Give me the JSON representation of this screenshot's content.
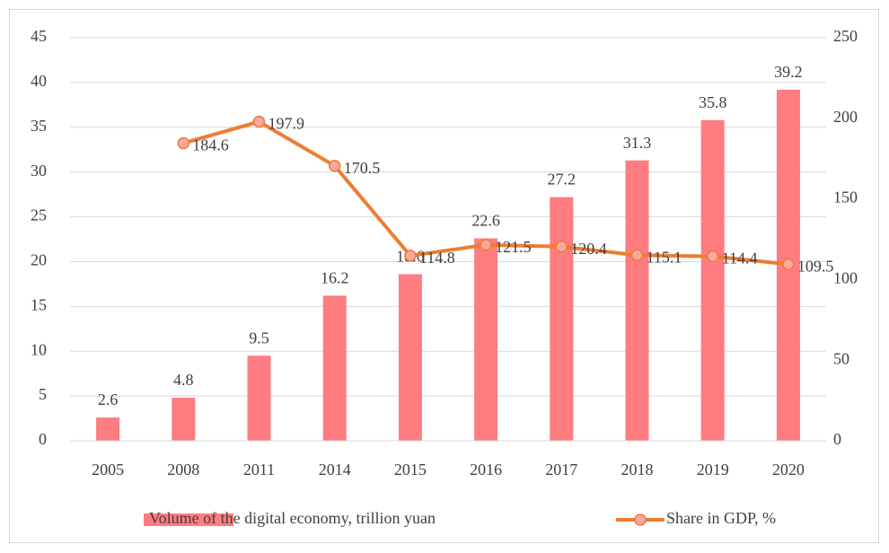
{
  "chart_data": {
    "type": "bar_line",
    "categories": [
      "2005",
      "2008",
      "2011",
      "2014",
      "2015",
      "2016",
      "2017",
      "2018",
      "2019",
      "2020"
    ],
    "series": [
      {
        "name": "Volume of the digital economy, trillion yuan",
        "type": "bar",
        "color": "#ff7c80",
        "axis": "y",
        "values": [
          2.6,
          4.8,
          9.5,
          16.2,
          18.6,
          22.6,
          27.2,
          31.3,
          35.8,
          39.2
        ]
      },
      {
        "name": "Share in GDP, %",
        "type": "line",
        "color": "#ed7d31",
        "marker_color": "#f8a8a0",
        "axis": "y2",
        "values": [
          null,
          184.6,
          197.9,
          170.5,
          114.8,
          121.5,
          120.4,
          115.1,
          114.4,
          109.5
        ]
      }
    ],
    "ylim": [
      0,
      45
    ],
    "yticks": [
      0,
      5,
      10,
      15,
      20,
      25,
      30,
      35,
      40,
      45
    ],
    "y2lim": [
      0,
      250
    ],
    "y2ticks": [
      0,
      50,
      100,
      150,
      200,
      250
    ],
    "grid": true,
    "legend": "bottom"
  }
}
